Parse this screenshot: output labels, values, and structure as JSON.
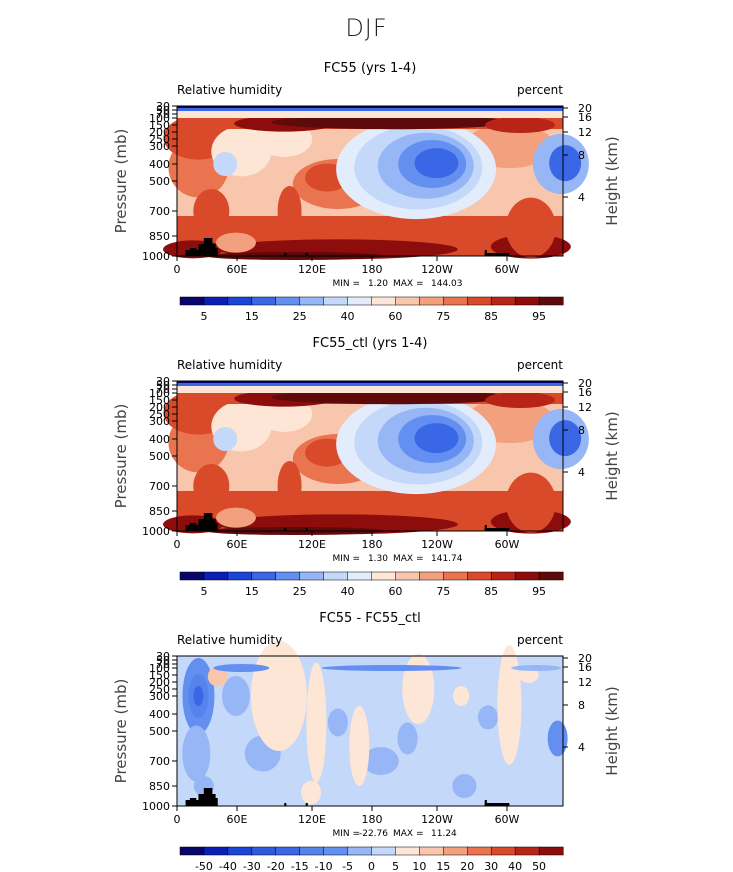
{
  "figure": {
    "season": "DJF"
  },
  "chart_data": [
    {
      "type": "heatmap",
      "title": "FC55 (yrs 1-4)",
      "left_label": "Relative humidity",
      "right_label": "percent",
      "ylabel": "Pressure (mb)",
      "ylabel_right": "Height (km)",
      "xticks": [
        "0",
        "60E",
        "120E",
        "180",
        "120W",
        "60W"
      ],
      "yticks": [
        "30",
        "50",
        "70",
        "100",
        "150",
        "200",
        "250",
        "300",
        "400",
        "500",
        "700",
        "850",
        "1000"
      ],
      "right_ticks": [
        "20",
        "16",
        "12",
        "8",
        "4"
      ],
      "stats_min_label": "MIN =",
      "stats_min": "1.20",
      "stats_max_label": "MAX =",
      "stats_max": "144.03",
      "colorbar_labels": [
        "5",
        "15",
        "25",
        "40",
        "60",
        "75",
        "85",
        "95"
      ],
      "colors": [
        "#08066b",
        "#0b1fb5",
        "#1a45d8",
        "#3a67e5",
        "#6390f0",
        "#96b6f5",
        "#c4d8fa",
        "#e2ecfb",
        "#fde6d6",
        "#f8c6ac",
        "#f3a07e",
        "#ea7350",
        "#d94a2a",
        "#b82415",
        "#8c0d0b",
        "#5e0a0a"
      ],
      "ylim_mb": [
        30,
        1000
      ]
    },
    {
      "type": "heatmap",
      "title": "FC55_ctl (yrs 1-4)",
      "left_label": "Relative humidity",
      "right_label": "percent",
      "ylabel": "Pressure (mb)",
      "ylabel_right": "Height (km)",
      "xticks": [
        "0",
        "60E",
        "120E",
        "180",
        "120W",
        "60W"
      ],
      "yticks": [
        "30",
        "50",
        "70",
        "100",
        "150",
        "200",
        "250",
        "300",
        "400",
        "500",
        "700",
        "850",
        "1000"
      ],
      "right_ticks": [
        "20",
        "16",
        "12",
        "8",
        "4"
      ],
      "stats_min_label": "MIN =",
      "stats_min": "1.30",
      "stats_max_label": "MAX =",
      "stats_max": "141.74",
      "colorbar_labels": [
        "5",
        "15",
        "25",
        "40",
        "60",
        "75",
        "85",
        "95"
      ],
      "colors": [
        "#08066b",
        "#0b1fb5",
        "#1a45d8",
        "#3a67e5",
        "#6390f0",
        "#96b6f5",
        "#c4d8fa",
        "#e2ecfb",
        "#fde6d6",
        "#f8c6ac",
        "#f3a07e",
        "#ea7350",
        "#d94a2a",
        "#b82415",
        "#8c0d0b",
        "#5e0a0a"
      ],
      "ylim_mb": [
        30,
        1000
      ]
    },
    {
      "type": "heatmap",
      "title": "FC55 - FC55_ctl",
      "left_label": "Relative humidity",
      "right_label": "percent",
      "ylabel": "Pressure (mb)",
      "ylabel_right": "Height (km)",
      "xticks": [
        "0",
        "60E",
        "120E",
        "180",
        "120W",
        "60W"
      ],
      "yticks": [
        "30",
        "50",
        "70",
        "100",
        "150",
        "200",
        "250",
        "300",
        "400",
        "500",
        "700",
        "850",
        "1000"
      ],
      "right_ticks": [
        "20",
        "16",
        "12",
        "8",
        "4"
      ],
      "stats_min_label": "MIN =",
      "stats_min": "-22.76",
      "stats_max_label": "MAX =",
      "stats_max": "11.24",
      "colorbar_labels": [
        "-50",
        "-40",
        "-30",
        "-20",
        "-15",
        "-10",
        "-5",
        "0",
        "5",
        "10",
        "15",
        "20",
        "30",
        "40",
        "50"
      ],
      "colors": [
        "#08066b",
        "#0b1fb5",
        "#1a45d8",
        "#2e5ae0",
        "#3a67e5",
        "#5583ec",
        "#6390f0",
        "#96b6f5",
        "#c4d8fa",
        "#fde6d6",
        "#f8c6ac",
        "#f3a07e",
        "#ea7350",
        "#d94a2a",
        "#b82415",
        "#8c0d0b"
      ],
      "ylim_mb": [
        30,
        1000
      ]
    }
  ]
}
